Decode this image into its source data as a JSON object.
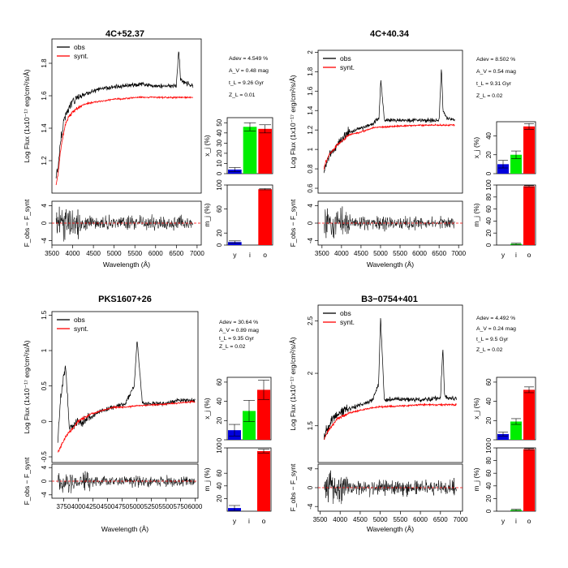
{
  "figure": {
    "xlabel": "Wavelength (Å)",
    "ylabel_flux": "Log Flux (1x10⁻¹⁷ erg/cm²/s/Å)",
    "ylabel_resid": "F_obs − F_synt",
    "ylabel_x": "x_j (%)",
    "ylabel_m": "m_j (%)",
    "legend": [
      "obs",
      "synt."
    ],
    "bar_categories": [
      "y",
      "i",
      "o"
    ],
    "colors": {
      "obs": "#000000",
      "synt": "#ff0000",
      "y": "#0000dd",
      "i": "#00ee00",
      "o": "#ff0000"
    }
  },
  "chart_data": [
    {
      "type": "line",
      "title": "4C+52.37",
      "annotations": [
        "Adev = 4.549 %",
        "A_V = 0.48 mag",
        "t_L = 9.26 Gyr",
        "Z_L = 0.01"
      ],
      "xlim": [
        3500,
        7100
      ],
      "ylim": [
        1.0,
        1.95
      ],
      "xticks": [
        3500,
        4000,
        4500,
        5000,
        5500,
        6000,
        6500,
        7000
      ],
      "yticks": [
        1.2,
        1.4,
        1.6,
        1.8
      ],
      "resid_ylim": [
        -5,
        5
      ],
      "resid_yticks": [
        -4,
        0,
        4
      ],
      "obs": {
        "x": [
          3600,
          3650,
          3700,
          3750,
          3800,
          3900,
          4000,
          4100,
          4300,
          4500,
          4800,
          5000,
          5200,
          5500,
          5800,
          6000,
          6300,
          6500,
          6560,
          6600,
          6700,
          6900
        ],
        "y": [
          1.1,
          1.15,
          1.3,
          1.38,
          1.46,
          1.52,
          1.56,
          1.58,
          1.61,
          1.63,
          1.65,
          1.65,
          1.66,
          1.67,
          1.67,
          1.66,
          1.66,
          1.66,
          1.89,
          1.7,
          1.68,
          1.66
        ]
      },
      "synt": {
        "x": [
          3600,
          3650,
          3700,
          3750,
          3800,
          3900,
          4000,
          4100,
          4300,
          4500,
          4800,
          5000,
          5200,
          5500,
          5800,
          6000,
          6300,
          6500,
          6700,
          6900
        ],
        "y": [
          1.05,
          1.12,
          1.25,
          1.32,
          1.4,
          1.47,
          1.5,
          1.52,
          1.55,
          1.56,
          1.57,
          1.58,
          1.58,
          1.59,
          1.59,
          1.59,
          1.59,
          1.59,
          1.59,
          1.59
        ]
      },
      "x_j": {
        "ylim": [
          0,
          55
        ],
        "yticks": [
          0,
          10,
          20,
          30,
          40,
          50
        ],
        "values": [
          4,
          46,
          44
        ],
        "errors": [
          2,
          4,
          4
        ]
      },
      "m_j": {
        "ylim": [
          0,
          100
        ],
        "yticks": [
          0,
          20,
          60,
          100
        ],
        "values": [
          5,
          0,
          93
        ],
        "errors": [
          2,
          0,
          1
        ]
      }
    },
    {
      "type": "line",
      "title": "4C+40.34",
      "annotations": [
        "Adev = 8.502 %",
        "A_V = 0.54 mag",
        "t_L = 9.31 Gyr",
        "Z_L = 0.02"
      ],
      "xlim": [
        3400,
        7100
      ],
      "ylim": [
        0.55,
        2.02
      ],
      "xticks": [
        3500,
        4000,
        4500,
        5000,
        5500,
        6000,
        6500,
        7000
      ],
      "yticks": [
        0.6,
        0.8,
        1.0,
        1.2,
        1.4,
        1.6,
        1.8,
        2.0
      ],
      "resid_ylim": [
        -5,
        5
      ],
      "resid_yticks": [
        -4,
        0,
        4
      ],
      "obs": {
        "x": [
          3550,
          3600,
          3700,
          3800,
          3900,
          4000,
          4200,
          4500,
          4800,
          4960,
          5007,
          5100,
          5500,
          6000,
          6300,
          6500,
          6560,
          6600,
          6700,
          6900
        ],
        "y": [
          0.75,
          0.85,
          0.95,
          1.0,
          1.05,
          1.1,
          1.18,
          1.22,
          1.26,
          1.32,
          1.72,
          1.3,
          1.3,
          1.3,
          1.3,
          1.3,
          1.85,
          1.4,
          1.32,
          1.3
        ]
      },
      "synt": {
        "x": [
          3550,
          3600,
          3700,
          3800,
          3900,
          4000,
          4200,
          4500,
          4800,
          5000,
          5500,
          6000,
          6500,
          6900
        ],
        "y": [
          0.8,
          0.88,
          0.95,
          1.0,
          1.05,
          1.08,
          1.15,
          1.18,
          1.22,
          1.23,
          1.24,
          1.25,
          1.25,
          1.25
        ]
      },
      "x_j": {
        "ylim": [
          0,
          55
        ],
        "yticks": [
          0,
          20,
          40
        ],
        "values": [
          10,
          20,
          50
        ],
        "errors": [
          4,
          4,
          3
        ]
      },
      "m_j": {
        "ylim": [
          0,
          100
        ],
        "yticks": [
          0,
          20,
          40,
          60,
          80,
          100
        ],
        "values": [
          0,
          2,
          98
        ],
        "errors": [
          0,
          1,
          1
        ]
      }
    },
    {
      "type": "line",
      "title": "PKS1607+26",
      "annotations": [
        "Adev = 30.64 %",
        "A_V = 0.89 mag",
        "t_L = 9.35 Gyr",
        "Z_L = 0.02"
      ],
      "xlim": [
        3550,
        6050
      ],
      "ylim": [
        -0.58,
        1.55
      ],
      "xticks": [
        3750,
        4000,
        4250,
        4500,
        4750,
        5000,
        5250,
        5500,
        5750,
        6000
      ],
      "yticks": [
        -0.5,
        0,
        0.5,
        1.0,
        1.5
      ],
      "resid_ylim": [
        -5,
        5
      ],
      "resid_yticks": [
        -4,
        0,
        4
      ],
      "obs": {
        "x": [
          3650,
          3700,
          3780,
          3850,
          4000,
          4200,
          4400,
          4600,
          4800,
          4959,
          5007,
          5100,
          5300,
          5500,
          5700,
          5900,
          6000
        ],
        "y": [
          -0.25,
          0.3,
          0.8,
          -0.1,
          0.0,
          0.05,
          0.15,
          0.2,
          0.25,
          0.5,
          1.15,
          0.25,
          0.25,
          0.25,
          0.3,
          0.3,
          0.3
        ]
      },
      "synt": {
        "x": [
          3650,
          3700,
          3800,
          3900,
          4000,
          4200,
          4400,
          4600,
          4800,
          5000,
          5200,
          5400,
          5600,
          5800,
          6000
        ],
        "y": [
          -0.45,
          -0.35,
          -0.2,
          -0.1,
          0.0,
          0.1,
          0.15,
          0.2,
          0.2,
          0.22,
          0.23,
          0.24,
          0.25,
          0.27,
          0.28
        ]
      },
      "x_j": {
        "ylim": [
          0,
          65
        ],
        "yticks": [
          0,
          20,
          40,
          60
        ],
        "values": [
          10,
          30,
          52
        ],
        "errors": [
          6,
          11,
          10
        ]
      },
      "m_j": {
        "ylim": [
          0,
          100
        ],
        "yticks": [
          20,
          40,
          60,
          100
        ],
        "values": [
          5,
          0,
          95
        ],
        "errors": [
          4,
          0,
          3
        ]
      }
    },
    {
      "type": "line",
      "title": "B3−0754+401",
      "annotations": [
        "Adev = 4.492 %",
        "A_V = 0.24 mag",
        "t_L = 9.5 Gyr",
        "Z_L = 0.02"
      ],
      "xlim": [
        3450,
        7050
      ],
      "ylim": [
        1.15,
        2.65
      ],
      "xticks": [
        3500,
        4000,
        4500,
        5000,
        5500,
        6000,
        6500,
        7000
      ],
      "yticks": [
        1.5,
        2.0,
        2.5
      ],
      "resid_ylim": [
        -5,
        5
      ],
      "resid_yticks": [
        -4,
        0,
        4
      ],
      "obs": {
        "x": [
          3600,
          3700,
          3800,
          3900,
          4000,
          4200,
          4500,
          4800,
          4959,
          5007,
          5100,
          5500,
          6000,
          6500,
          6560,
          6600,
          6700,
          6900
        ],
        "y": [
          1.4,
          1.48,
          1.55,
          1.6,
          1.62,
          1.66,
          1.7,
          1.74,
          1.9,
          2.55,
          1.75,
          1.75,
          1.75,
          1.76,
          2.25,
          1.8,
          1.76,
          1.76
        ]
      },
      "synt": {
        "x": [
          3600,
          3700,
          3800,
          3900,
          4000,
          4200,
          4500,
          4800,
          5000,
          5500,
          6000,
          6500,
          6900
        ],
        "y": [
          1.38,
          1.45,
          1.5,
          1.55,
          1.58,
          1.62,
          1.65,
          1.67,
          1.68,
          1.69,
          1.7,
          1.7,
          1.7
        ]
      },
      "x_j": {
        "ylim": [
          0,
          65
        ],
        "yticks": [
          0,
          20,
          40,
          60
        ],
        "values": [
          6,
          19,
          52
        ],
        "errors": [
          2,
          3,
          3
        ]
      },
      "m_j": {
        "ylim": [
          0,
          100
        ],
        "yticks": [
          0,
          20,
          40,
          60,
          80,
          100
        ],
        "values": [
          0,
          2,
          98
        ],
        "errors": [
          0,
          1,
          1
        ]
      }
    }
  ]
}
